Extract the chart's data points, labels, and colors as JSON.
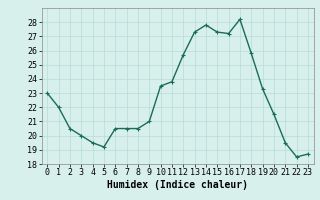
{
  "x": [
    0,
    1,
    2,
    3,
    4,
    5,
    6,
    7,
    8,
    9,
    10,
    11,
    12,
    13,
    14,
    15,
    16,
    17,
    18,
    19,
    20,
    21,
    22,
    23
  ],
  "y": [
    23,
    22,
    20.5,
    20,
    19.5,
    19.2,
    20.5,
    20.5,
    20.5,
    21,
    23.5,
    23.8,
    25.7,
    27.3,
    27.8,
    27.3,
    27.2,
    28.2,
    25.8,
    23.3,
    21.5,
    19.5,
    18.5,
    18.7
  ],
  "line_color": "#1a6b5a",
  "marker": "+",
  "marker_size": 3,
  "linewidth": 1.0,
  "bg_color": "#d8f0ec",
  "grid_color": "#b8ddd6",
  "xlabel": "Humidex (Indice chaleur)",
  "xlabel_fontsize": 7,
  "tick_fontsize": 6,
  "ylim": [
    18,
    29
  ],
  "yticks": [
    18,
    19,
    20,
    21,
    22,
    23,
    24,
    25,
    26,
    27,
    28
  ],
  "xticks": [
    0,
    1,
    2,
    3,
    4,
    5,
    6,
    7,
    8,
    9,
    10,
    11,
    12,
    13,
    14,
    15,
    16,
    17,
    18,
    19,
    20,
    21,
    22,
    23
  ],
  "xlim": [
    -0.5,
    23.5
  ]
}
